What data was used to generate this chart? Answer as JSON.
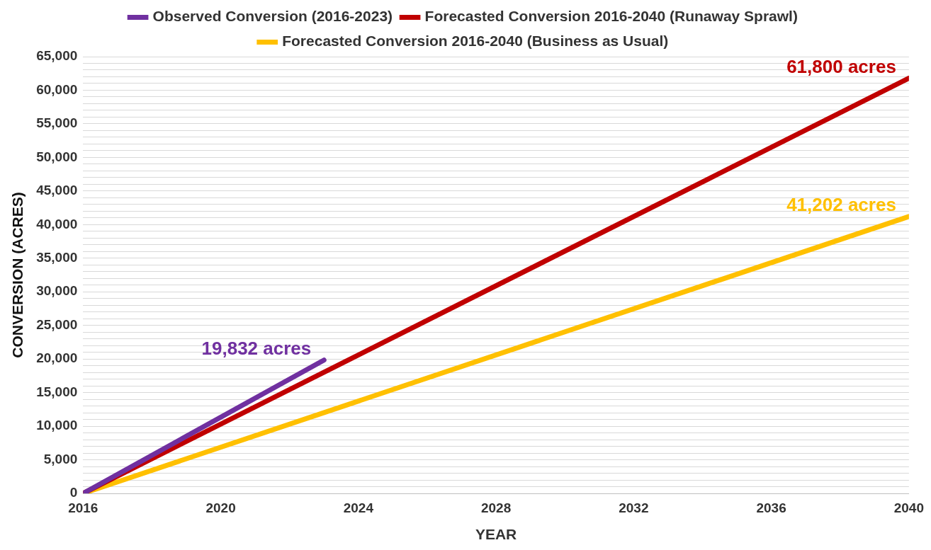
{
  "chart_data": {
    "type": "line",
    "xlabel": "YEAR",
    "ylabel": "CONVERSION (ACRES)",
    "series": [
      {
        "name": "Observed Conversion (2016-2023)",
        "color": "#7030a0",
        "x": [
          2016,
          2023
        ],
        "values": [
          0,
          19832
        ],
        "value_labels": [
          null,
          "19,832 acres"
        ]
      },
      {
        "name": "Forecasted Conversion 2016-2040 (Runaway Sprawl)",
        "color": "#c00000",
        "x": [
          2016,
          2040
        ],
        "values": [
          0,
          61800
        ],
        "value_labels": [
          null,
          "61,800 acres"
        ]
      },
      {
        "name": "Forecasted Conversion 2016-2040 (Business as Usual)",
        "color": "#ffc000",
        "x": [
          2016,
          2040
        ],
        "values": [
          0,
          41202
        ],
        "value_labels": [
          null,
          "41,202 acres"
        ]
      }
    ],
    "xlim": [
      2016,
      2040
    ],
    "xticks": [
      2016,
      2020,
      2024,
      2028,
      2032,
      2036,
      2040
    ],
    "ylim": [
      0,
      65000
    ],
    "yticks": [
      {
        "value": 0,
        "label": "0"
      },
      {
        "value": 1000,
        "label": null
      },
      {
        "value": 2000,
        "label": null
      },
      {
        "value": 3000,
        "label": null
      },
      {
        "value": 4000,
        "label": null
      },
      {
        "value": 5000,
        "label": "5,000"
      },
      {
        "value": 6000,
        "label": null
      },
      {
        "value": 7000,
        "label": null
      },
      {
        "value": 8000,
        "label": null
      },
      {
        "value": 9000,
        "label": null
      },
      {
        "value": 10000,
        "label": "10,000"
      },
      {
        "value": 11000,
        "label": null
      },
      {
        "value": 12000,
        "label": null
      },
      {
        "value": 13000,
        "label": null
      },
      {
        "value": 14000,
        "label": null
      },
      {
        "value": 15000,
        "label": "15,000"
      },
      {
        "value": 16000,
        "label": null
      },
      {
        "value": 17000,
        "label": null
      },
      {
        "value": 18000,
        "label": null
      },
      {
        "value": 19000,
        "label": null
      },
      {
        "value": 20000,
        "label": "20,000"
      },
      {
        "value": 21000,
        "label": null
      },
      {
        "value": 22000,
        "label": null
      },
      {
        "value": 23000,
        "label": null
      },
      {
        "value": 24000,
        "label": null
      },
      {
        "value": 25000,
        "label": "25,000"
      },
      {
        "value": 26000,
        "label": null
      },
      {
        "value": 27000,
        "label": null
      },
      {
        "value": 28000,
        "label": null
      },
      {
        "value": 29000,
        "label": null
      },
      {
        "value": 30000,
        "label": "30,000"
      },
      {
        "value": 31000,
        "label": null
      },
      {
        "value": 32000,
        "label": null
      },
      {
        "value": 33000,
        "label": null
      },
      {
        "value": 34000,
        "label": null
      },
      {
        "value": 35000,
        "label": "35,000"
      },
      {
        "value": 36000,
        "label": null
      },
      {
        "value": 37000,
        "label": null
      },
      {
        "value": 38000,
        "label": null
      },
      {
        "value": 39000,
        "label": null
      },
      {
        "value": 40000,
        "label": "40,000"
      },
      {
        "value": 41000,
        "label": null
      },
      {
        "value": 42000,
        "label": null
      },
      {
        "value": 43000,
        "label": null
      },
      {
        "value": 44000,
        "label": null
      },
      {
        "value": 45000,
        "label": "45,000"
      },
      {
        "value": 46000,
        "label": null
      },
      {
        "value": 47000,
        "label": null
      },
      {
        "value": 48000,
        "label": null
      },
      {
        "value": 49000,
        "label": null
      },
      {
        "value": 50000,
        "label": "50,000"
      },
      {
        "value": 51000,
        "label": null
      },
      {
        "value": 52000,
        "label": null
      },
      {
        "value": 53000,
        "label": null
      },
      {
        "value": 54000,
        "label": null
      },
      {
        "value": 55000,
        "label": "55,000"
      },
      {
        "value": 56000,
        "label": null
      },
      {
        "value": 57000,
        "label": null
      },
      {
        "value": 58000,
        "label": null
      },
      {
        "value": 59000,
        "label": null
      },
      {
        "value": 60000,
        "label": "60,000"
      },
      {
        "value": 61000,
        "label": null
      },
      {
        "value": 62000,
        "label": null
      },
      {
        "value": 63000,
        "label": null
      },
      {
        "value": 64000,
        "label": null
      },
      {
        "value": 65000,
        "label": "65,000"
      }
    ],
    "grid": "y",
    "legend": "top",
    "marker": "none",
    "line_style": "solid"
  }
}
